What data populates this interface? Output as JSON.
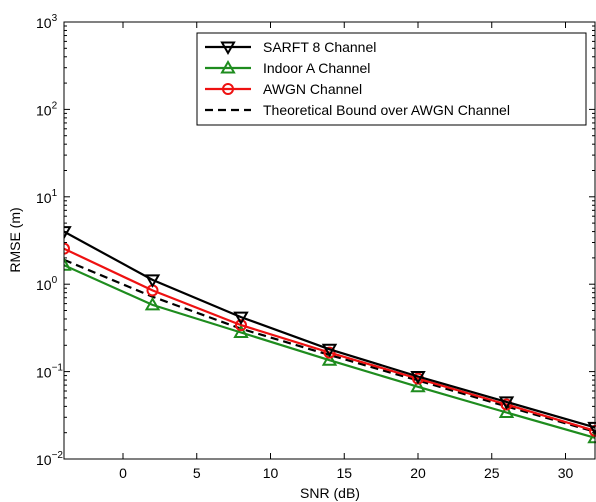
{
  "chart_data": {
    "type": "line",
    "xlabel": "SNR (dB)",
    "ylabel": "RMSE (m)",
    "xlim": [
      -4,
      32
    ],
    "ylim": [
      0.01,
      1000
    ],
    "yscale": "log",
    "xticks": [
      0,
      5,
      10,
      15,
      20,
      25,
      30
    ],
    "xtick_labels": [
      "0",
      "5",
      "10",
      "15",
      "20",
      "25",
      "30"
    ],
    "yticks": [
      {
        "value": 0.01,
        "base": "10",
        "exp": "−2"
      },
      {
        "value": 0.1,
        "base": "10",
        "exp": "−1"
      },
      {
        "value": 1,
        "base": "10",
        "exp": "0"
      },
      {
        "value": 10,
        "base": "10",
        "exp": "1"
      },
      {
        "value": 100,
        "base": "10",
        "exp": "2"
      },
      {
        "value": 1000,
        "base": "10",
        "exp": "3"
      }
    ],
    "grid": false,
    "legend_position": "top-right",
    "x": [
      -4,
      2,
      8,
      14,
      20,
      26,
      32
    ],
    "series": [
      {
        "name": "SARFT 8 Channel",
        "values": [
          4.0,
          1.12,
          0.42,
          0.18,
          0.088,
          0.045,
          0.023
        ],
        "color": "#000000",
        "marker": "triangle-down",
        "dash": "solid"
      },
      {
        "name": "Indoor A  Channel",
        "values": [
          1.65,
          0.58,
          0.28,
          0.135,
          0.067,
          0.034,
          0.0175
        ],
        "color": "#1e8c1e",
        "marker": "triangle-up",
        "dash": "solid"
      },
      {
        "name": "AWGN Channel",
        "values": [
          2.55,
          0.85,
          0.34,
          0.165,
          0.083,
          0.042,
          0.021
        ],
        "color": "#ee1111",
        "marker": "circle",
        "dash": "solid"
      },
      {
        "name": "Theoretical Bound over AWGN Channel",
        "values": [
          1.9,
          0.72,
          0.31,
          0.155,
          0.079,
          0.04,
          0.0205
        ],
        "color": "#000000",
        "marker": "none",
        "dash": "dashed"
      }
    ]
  }
}
